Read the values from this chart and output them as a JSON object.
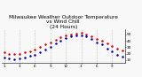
{
  "title": "Milwaukee Weather Outdoor Temperature\nvs Wind Chill\n(24 Hours)",
  "title_fontsize": 4.2,
  "outdoor_temp": [
    22,
    20,
    19,
    20,
    22,
    24,
    26,
    30,
    34,
    38,
    42,
    45,
    48,
    50,
    51,
    52,
    50,
    47,
    43,
    40,
    36,
    32,
    28,
    25
  ],
  "wind_chill": [
    14,
    12,
    11,
    12,
    14,
    16,
    18,
    22,
    26,
    31,
    36,
    40,
    44,
    47,
    48,
    49,
    47,
    43,
    38,
    34,
    28,
    23,
    18,
    15
  ],
  "x_tick_positions": [
    0,
    3,
    6,
    9,
    12,
    15,
    18,
    21
  ],
  "x_labels": [
    "1",
    "3",
    "6",
    "9",
    "12",
    "3",
    "6",
    "9"
  ],
  "grid_x": [
    0,
    3,
    6,
    9,
    12,
    15,
    18,
    21
  ],
  "ylim": [
    5,
    58
  ],
  "xlim": [
    -0.5,
    23.5
  ],
  "y_ticks": [
    10,
    20,
    30,
    40,
    50
  ],
  "outdoor_color": "#cc0000",
  "windchill_color": "#000099",
  "background": "#f8f8f8",
  "marker_size": 1.8
}
